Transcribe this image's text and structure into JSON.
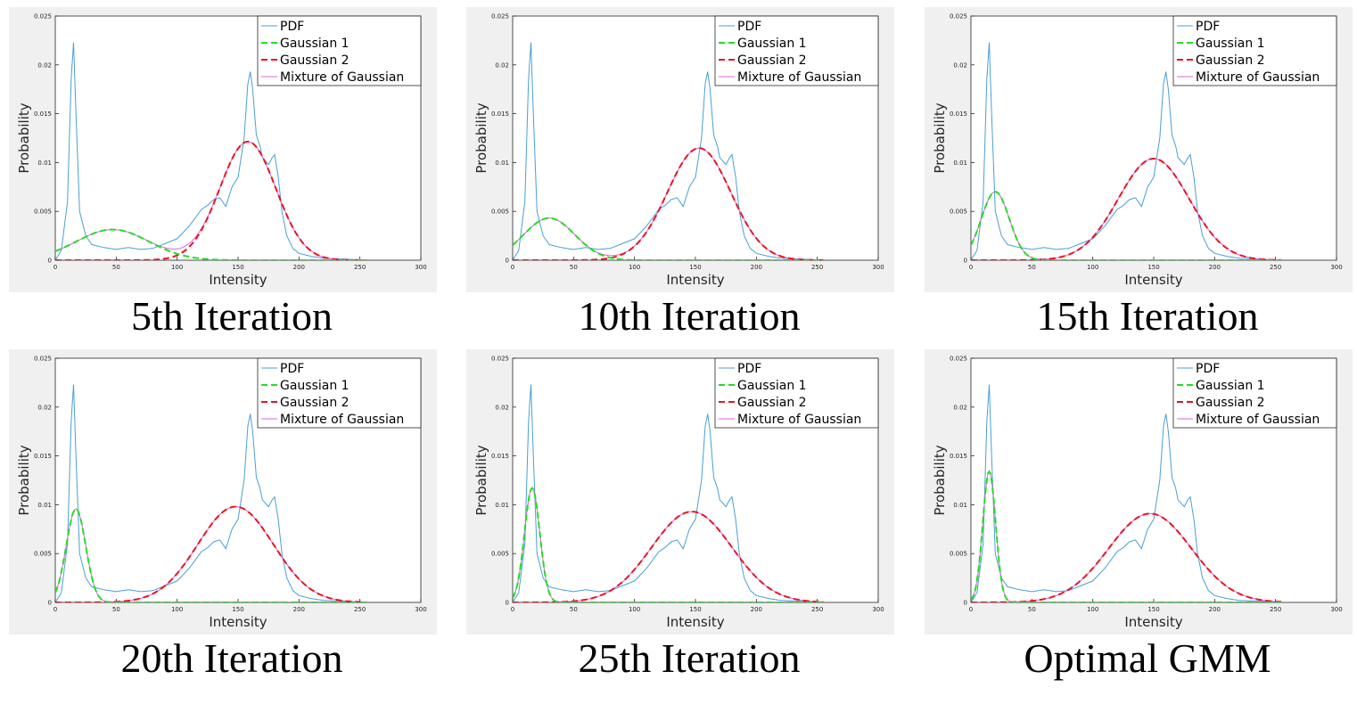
{
  "figure": {
    "colors": {
      "pdf": "#4a9fd4",
      "gaussian1": "#22dd22",
      "gaussian2": "#e8141c",
      "mixture": "#e060e0",
      "panel_background": "#f0f0f0"
    }
  },
  "chart_data": [
    {
      "type": "line",
      "title": "5th Iteration",
      "xlabel": "Intensity",
      "ylabel": "Probability",
      "xlim": [
        0,
        300
      ],
      "ylim": [
        0,
        0.025
      ],
      "xticks": [
        "0",
        "50",
        "100",
        "150",
        "200",
        "250",
        "300"
      ],
      "yticks": [
        "0",
        "0.005",
        "0.01",
        "0.015",
        "0.02",
        "0.025"
      ],
      "legend": [
        "PDF",
        "Gaussian 1",
        "Gaussian 2",
        "Mixture of Gaussian"
      ],
      "legend_position": "top-right",
      "gaussian1": {
        "weight": 0.236,
        "mean": 47,
        "std": 30
      },
      "gaussian2": {
        "weight": 0.7,
        "mean": 158,
        "std": 23
      },
      "pdf": {
        "x": [
          0,
          5,
          10,
          13,
          15,
          17,
          20,
          25,
          30,
          40,
          50,
          60,
          70,
          80,
          90,
          100,
          110,
          120,
          125,
          130,
          135,
          140,
          145,
          150,
          155,
          158,
          160,
          162,
          165,
          168,
          170,
          175,
          178,
          180,
          183,
          186,
          190,
          195,
          200,
          210,
          220,
          240,
          255
        ],
        "y": [
          0,
          0.001,
          0.006,
          0.0185,
          0.0223,
          0.015,
          0.005,
          0.0025,
          0.0016,
          0.0013,
          0.0011,
          0.0013,
          0.0011,
          0.0012,
          0.0017,
          0.0022,
          0.0035,
          0.0052,
          0.0056,
          0.0062,
          0.0064,
          0.0055,
          0.0075,
          0.0085,
          0.0125,
          0.018,
          0.0193,
          0.0175,
          0.0128,
          0.0117,
          0.0105,
          0.0098,
          0.0105,
          0.0108,
          0.0085,
          0.005,
          0.0025,
          0.0012,
          0.0007,
          0.0004,
          0.0002,
          0.0001,
          0
        ]
      }
    },
    {
      "type": "line",
      "title": "10th Iteration",
      "xlabel": "Intensity",
      "ylabel": "Probability",
      "xlim": [
        0,
        300
      ],
      "ylim": [
        0,
        0.025
      ],
      "xticks": [
        "0",
        "50",
        "100",
        "150",
        "200",
        "250",
        "300"
      ],
      "yticks": [
        "0",
        "0.005",
        "0.01",
        "0.015",
        "0.02",
        "0.025"
      ],
      "legend": [
        "PDF",
        "Gaussian 1",
        "Gaussian 2",
        "Mixture of Gaussian"
      ],
      "legend_position": "top-right",
      "gaussian1": {
        "weight": 0.227,
        "mean": 30,
        "std": 21
      },
      "gaussian2": {
        "weight": 0.748,
        "mean": 153,
        "std": 26
      },
      "pdf": {
        "x": [
          0,
          5,
          10,
          13,
          15,
          17,
          20,
          25,
          30,
          40,
          50,
          60,
          70,
          80,
          90,
          100,
          110,
          120,
          125,
          130,
          135,
          140,
          145,
          150,
          155,
          158,
          160,
          162,
          165,
          168,
          170,
          175,
          178,
          180,
          183,
          186,
          190,
          195,
          200,
          210,
          220,
          240,
          255
        ],
        "y": [
          0,
          0.001,
          0.006,
          0.0185,
          0.0223,
          0.015,
          0.005,
          0.0025,
          0.0016,
          0.0013,
          0.0011,
          0.0013,
          0.0011,
          0.0012,
          0.0017,
          0.0022,
          0.0035,
          0.0052,
          0.0056,
          0.0062,
          0.0064,
          0.0055,
          0.0075,
          0.0085,
          0.0125,
          0.018,
          0.0193,
          0.0175,
          0.0128,
          0.0117,
          0.0105,
          0.0098,
          0.0105,
          0.0108,
          0.0085,
          0.005,
          0.0025,
          0.0012,
          0.0007,
          0.0004,
          0.0002,
          0.0001,
          0
        ]
      }
    },
    {
      "type": "line",
      "title": "15th Iteration",
      "xlabel": "Intensity",
      "ylabel": "Probability",
      "xlim": [
        0,
        300
      ],
      "ylim": [
        0,
        0.025
      ],
      "xticks": [
        "0",
        "50",
        "100",
        "150",
        "200",
        "250",
        "300"
      ],
      "yticks": [
        "0",
        "0.005",
        "0.01",
        "0.015",
        "0.02",
        "0.025"
      ],
      "legend": [
        "PDF",
        "Gaussian 1",
        "Gaussian 2",
        "Mixture of Gaussian"
      ],
      "legend_position": "top-right",
      "gaussian1": {
        "weight": 0.202,
        "mean": 20,
        "std": 11.5
      },
      "gaussian2": {
        "weight": 0.756,
        "mean": 150,
        "std": 29
      },
      "pdf": {
        "x": [
          0,
          5,
          10,
          13,
          15,
          17,
          20,
          25,
          30,
          40,
          50,
          60,
          70,
          80,
          90,
          100,
          110,
          120,
          125,
          130,
          135,
          140,
          145,
          150,
          155,
          158,
          160,
          162,
          165,
          168,
          170,
          175,
          178,
          180,
          183,
          186,
          190,
          195,
          200,
          210,
          220,
          240,
          255
        ],
        "y": [
          0,
          0.001,
          0.006,
          0.0185,
          0.0223,
          0.015,
          0.005,
          0.0025,
          0.0016,
          0.0013,
          0.0011,
          0.0013,
          0.0011,
          0.0012,
          0.0017,
          0.0022,
          0.0035,
          0.0052,
          0.0056,
          0.0062,
          0.0064,
          0.0055,
          0.0075,
          0.0085,
          0.0125,
          0.018,
          0.0193,
          0.0175,
          0.0128,
          0.0117,
          0.0105,
          0.0098,
          0.0105,
          0.0108,
          0.0085,
          0.005,
          0.0025,
          0.0012,
          0.0007,
          0.0004,
          0.0002,
          0.0001,
          0
        ]
      }
    },
    {
      "type": "line",
      "title": "20th Iteration",
      "xlabel": "Intensity",
      "ylabel": "Probability",
      "xlim": [
        0,
        300
      ],
      "ylim": [
        0,
        0.025
      ],
      "xticks": [
        "0",
        "50",
        "100",
        "150",
        "200",
        "250",
        "300"
      ],
      "yticks": [
        "0",
        "0.005",
        "0.01",
        "0.015",
        "0.02",
        "0.025"
      ],
      "legend": [
        "PDF",
        "Gaussian 1",
        "Gaussian 2",
        "Mixture of Gaussian"
      ],
      "legend_position": "top-right",
      "gaussian1": {
        "weight": 0.192,
        "mean": 17,
        "std": 8
      },
      "gaussian2": {
        "weight": 0.762,
        "mean": 148,
        "std": 31
      },
      "pdf": {
        "x": [
          0,
          5,
          10,
          13,
          15,
          17,
          20,
          25,
          30,
          40,
          50,
          60,
          70,
          80,
          90,
          100,
          110,
          120,
          125,
          130,
          135,
          140,
          145,
          150,
          155,
          158,
          160,
          162,
          165,
          168,
          170,
          175,
          178,
          180,
          183,
          186,
          190,
          195,
          200,
          210,
          220,
          240,
          255
        ],
        "y": [
          0,
          0.001,
          0.006,
          0.0185,
          0.0223,
          0.015,
          0.005,
          0.0025,
          0.0016,
          0.0013,
          0.0011,
          0.0013,
          0.0011,
          0.0012,
          0.0017,
          0.0022,
          0.0035,
          0.0052,
          0.0056,
          0.0062,
          0.0064,
          0.0055,
          0.0075,
          0.0085,
          0.0125,
          0.018,
          0.0193,
          0.0175,
          0.0128,
          0.0117,
          0.0105,
          0.0098,
          0.0105,
          0.0108,
          0.0085,
          0.005,
          0.0025,
          0.0012,
          0.0007,
          0.0004,
          0.0002,
          0.0001,
          0
        ]
      }
    },
    {
      "type": "line",
      "title": "25th Iteration",
      "xlabel": "Intensity",
      "ylabel": "Probability",
      "xlim": [
        0,
        300
      ],
      "ylim": [
        0,
        0.025
      ],
      "xticks": [
        "0",
        "50",
        "100",
        "150",
        "200",
        "250",
        "300"
      ],
      "yticks": [
        "0",
        "0.005",
        "0.01",
        "0.015",
        "0.02",
        "0.025"
      ],
      "legend": [
        "PDF",
        "Gaussian 1",
        "Gaussian 2",
        "Mixture of Gaussian"
      ],
      "legend_position": "top-right",
      "gaussian1": {
        "weight": 0.185,
        "mean": 16,
        "std": 6.3
      },
      "gaussian2": {
        "weight": 0.769,
        "mean": 147,
        "std": 33
      },
      "pdf": {
        "x": [
          0,
          5,
          10,
          13,
          15,
          17,
          20,
          25,
          30,
          40,
          50,
          60,
          70,
          80,
          90,
          100,
          110,
          120,
          125,
          130,
          135,
          140,
          145,
          150,
          155,
          158,
          160,
          162,
          165,
          168,
          170,
          175,
          178,
          180,
          183,
          186,
          190,
          195,
          200,
          210,
          220,
          240,
          255
        ],
        "y": [
          0,
          0.001,
          0.006,
          0.0185,
          0.0223,
          0.015,
          0.005,
          0.0025,
          0.0016,
          0.0013,
          0.0011,
          0.0013,
          0.0011,
          0.0012,
          0.0017,
          0.0022,
          0.0035,
          0.0052,
          0.0056,
          0.0062,
          0.0064,
          0.0055,
          0.0075,
          0.0085,
          0.0125,
          0.018,
          0.0193,
          0.0175,
          0.0128,
          0.0117,
          0.0105,
          0.0098,
          0.0105,
          0.0108,
          0.0085,
          0.005,
          0.0025,
          0.0012,
          0.0007,
          0.0004,
          0.0002,
          0.0001,
          0
        ]
      }
    },
    {
      "type": "line",
      "title": "Optimal GMM",
      "xlabel": "Intensity",
      "ylabel": "Probability",
      "xlim": [
        0,
        300
      ],
      "ylim": [
        0,
        0.025
      ],
      "xticks": [
        "0",
        "50",
        "100",
        "150",
        "200",
        "250",
        "300"
      ],
      "yticks": [
        "0",
        "0.005",
        "0.01",
        "0.015",
        "0.02",
        "0.025"
      ],
      "legend": [
        "PDF",
        "Gaussian 1",
        "Gaussian 2",
        "Mixture of Gaussian"
      ],
      "legend_position": "top-right",
      "gaussian1": {
        "weight": 0.178,
        "mean": 15,
        "std": 5.3
      },
      "gaussian2": {
        "weight": 0.775,
        "mean": 147,
        "std": 34
      },
      "pdf": {
        "x": [
          0,
          5,
          10,
          13,
          15,
          17,
          20,
          25,
          30,
          40,
          50,
          60,
          70,
          80,
          90,
          100,
          110,
          120,
          125,
          130,
          135,
          140,
          145,
          150,
          155,
          158,
          160,
          162,
          165,
          168,
          170,
          175,
          178,
          180,
          183,
          186,
          190,
          195,
          200,
          210,
          220,
          240,
          255
        ],
        "y": [
          0,
          0.001,
          0.006,
          0.0185,
          0.0223,
          0.015,
          0.005,
          0.0025,
          0.0016,
          0.0013,
          0.0011,
          0.0013,
          0.0011,
          0.0012,
          0.0017,
          0.0022,
          0.0035,
          0.0052,
          0.0056,
          0.0062,
          0.0064,
          0.0055,
          0.0075,
          0.0085,
          0.0125,
          0.018,
          0.0193,
          0.0175,
          0.0128,
          0.0117,
          0.0105,
          0.0098,
          0.0105,
          0.0108,
          0.0085,
          0.005,
          0.0025,
          0.0012,
          0.0007,
          0.0004,
          0.0002,
          0.0001,
          0
        ]
      }
    }
  ]
}
